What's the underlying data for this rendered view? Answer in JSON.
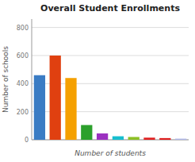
{
  "chart_data": {
    "type": "bar",
    "title": "Overall Student Enrollments",
    "xlabel": "Number of students",
    "ylabel": "Number of schools",
    "categories": [
      null,
      null,
      null,
      null,
      null,
      null,
      null,
      null,
      null,
      null
    ],
    "values": [
      460,
      600,
      440,
      105,
      45,
      25,
      20,
      15,
      12,
      8
    ],
    "colors": [
      "#3a7cc4",
      "#e04010",
      "#f5a000",
      "#2ca02c",
      "#9b30c0",
      "#17becf",
      "#8dc026",
      "#e02020",
      "#e02020",
      "#b0b8e8"
    ],
    "ylim": [
      0,
      860
    ],
    "yticks": [
      0,
      200,
      400,
      600,
      800
    ],
    "grid": true,
    "tick_labels": "y"
  }
}
